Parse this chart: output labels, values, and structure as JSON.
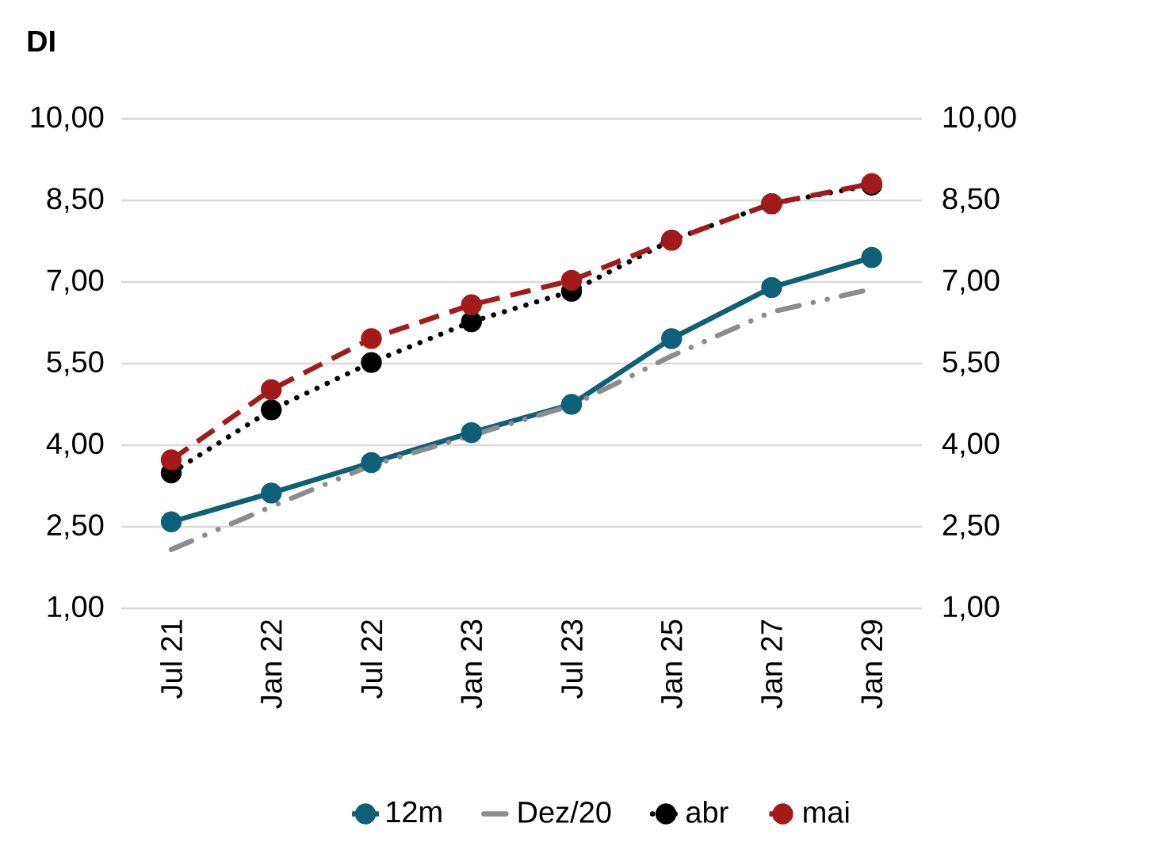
{
  "chart_data": {
    "type": "line",
    "title": "DI",
    "categories": [
      "Jul 21",
      "Jan 22",
      "Jul 22",
      "Jan 23",
      "Jul 23",
      "Jan 25",
      "Jan 27",
      "Jan 29"
    ],
    "series": [
      {
        "name": "12m",
        "color": "#0e5f78",
        "line_style": "solid",
        "marker": "circle",
        "values": [
          2.59,
          3.12,
          3.68,
          4.23,
          4.75,
          5.96,
          6.9,
          7.45
        ]
      },
      {
        "name": "Dez/20",
        "color": "#8c8c8c",
        "line_style": "dashed",
        "marker": "none",
        "values": [
          2.08,
          2.87,
          3.63,
          4.18,
          4.73,
          5.64,
          6.45,
          6.87
        ]
      },
      {
        "name": "abr",
        "color": "#000000",
        "line_style": "dotted",
        "marker": "circle",
        "values": [
          3.49,
          4.65,
          5.52,
          6.27,
          6.83,
          7.77,
          8.44,
          8.78
        ]
      },
      {
        "name": "mai",
        "color": "#a31a1a",
        "line_style": "dashed",
        "marker": "circle",
        "values": [
          3.73,
          5.02,
          5.96,
          6.58,
          7.03,
          7.77,
          8.44,
          8.81
        ]
      }
    ],
    "ylim": [
      1,
      10
    ],
    "yticks": [
      {
        "value": 1,
        "label": "1,00"
      },
      {
        "value": 2.5,
        "label": "2,50"
      },
      {
        "value": 4,
        "label": "4,00"
      },
      {
        "value": 5.5,
        "label": "5,50"
      },
      {
        "value": 7,
        "label": "7,00"
      },
      {
        "value": 8.5,
        "label": "8,50"
      },
      {
        "value": 10,
        "label": "10,00"
      }
    ],
    "y2lim": [
      1,
      10
    ],
    "y2ticks": [
      {
        "value": 1,
        "label": "1,00"
      },
      {
        "value": 2.5,
        "label": "2,50"
      },
      {
        "value": 4,
        "label": "4,00"
      },
      {
        "value": 5.5,
        "label": "5,50"
      },
      {
        "value": 7,
        "label": "7,00"
      },
      {
        "value": 8.5,
        "label": "8,50"
      },
      {
        "value": 10,
        "label": "10,00"
      }
    ],
    "grid": "y",
    "legend": "bottom"
  }
}
